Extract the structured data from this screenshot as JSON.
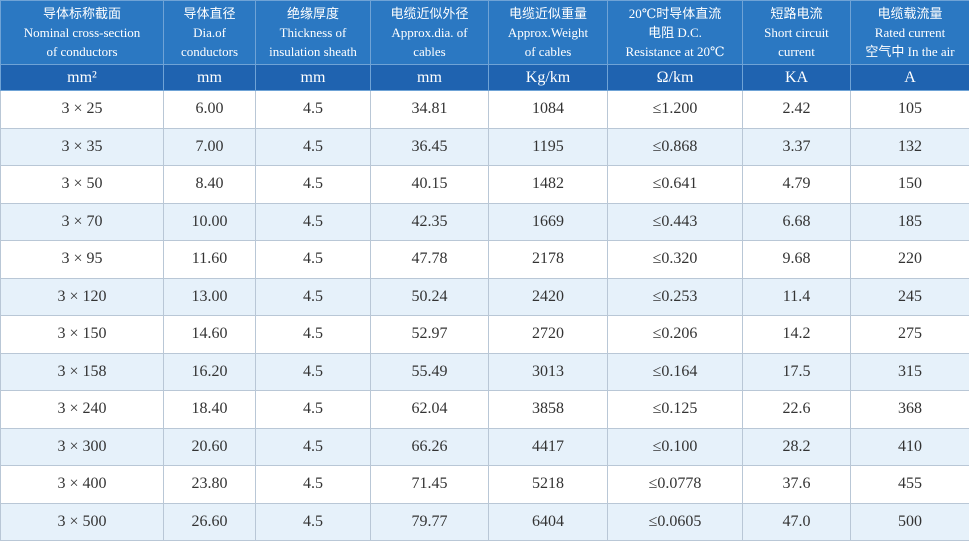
{
  "table": {
    "header": [
      [
        "导体标称截面",
        "Nominal cross-section",
        "of conductors"
      ],
      [
        "导体直径",
        "Dia.of",
        "conductors"
      ],
      [
        "绝缘厚度",
        "Thickness of",
        "insulation sheath"
      ],
      [
        "电缆近似外径",
        "Approx.dia. of",
        "cables"
      ],
      [
        "电缆近似重量",
        "Approx.Weight",
        "of cables"
      ],
      [
        "20℃时导体直流",
        "电阻 D.C.",
        "Resistance at 20℃"
      ],
      [
        "短路电流",
        "Short circuit",
        "current"
      ],
      [
        "电缆载流量",
        "Rated current",
        "空气中 In the air"
      ]
    ],
    "units": [
      "mm²",
      "mm",
      "mm",
      "mm",
      "Kg/km",
      "Ω/km",
      "KA",
      "A"
    ],
    "rows": [
      [
        "3 × 25",
        "6.00",
        "4.5",
        "34.81",
        "1084",
        "≤1.200",
        "2.42",
        "105"
      ],
      [
        "3 × 35",
        "7.00",
        "4.5",
        "36.45",
        "1195",
        "≤0.868",
        "3.37",
        "132"
      ],
      [
        "3 × 50",
        "8.40",
        "4.5",
        "40.15",
        "1482",
        "≤0.641",
        "4.79",
        "150"
      ],
      [
        "3 × 70",
        "10.00",
        "4.5",
        "42.35",
        "1669",
        "≤0.443",
        "6.68",
        "185"
      ],
      [
        "3 × 95",
        "11.60",
        "4.5",
        "47.78",
        "2178",
        "≤0.320",
        "9.68",
        "220"
      ],
      [
        "3 × 120",
        "13.00",
        "4.5",
        "50.24",
        "2420",
        "≤0.253",
        "11.4",
        "245"
      ],
      [
        "3 × 150",
        "14.60",
        "4.5",
        "52.97",
        "2720",
        "≤0.206",
        "14.2",
        "275"
      ],
      [
        "3 × 158",
        "16.20",
        "4.5",
        "55.49",
        "3013",
        "≤0.164",
        "17.5",
        "315"
      ],
      [
        "3 × 240",
        "18.40",
        "4.5",
        "62.04",
        "3858",
        "≤0.125",
        "22.6",
        "368"
      ],
      [
        "3 × 300",
        "20.60",
        "4.5",
        "66.26",
        "4417",
        "≤0.100",
        "28.2",
        "410"
      ],
      [
        "3 × 400",
        "23.80",
        "4.5",
        "71.45",
        "5218",
        "≤0.0778",
        "37.6",
        "455"
      ],
      [
        "3 × 500",
        "26.60",
        "4.5",
        "79.77",
        "6404",
        "≤0.0605",
        "47.0",
        "500"
      ]
    ]
  }
}
